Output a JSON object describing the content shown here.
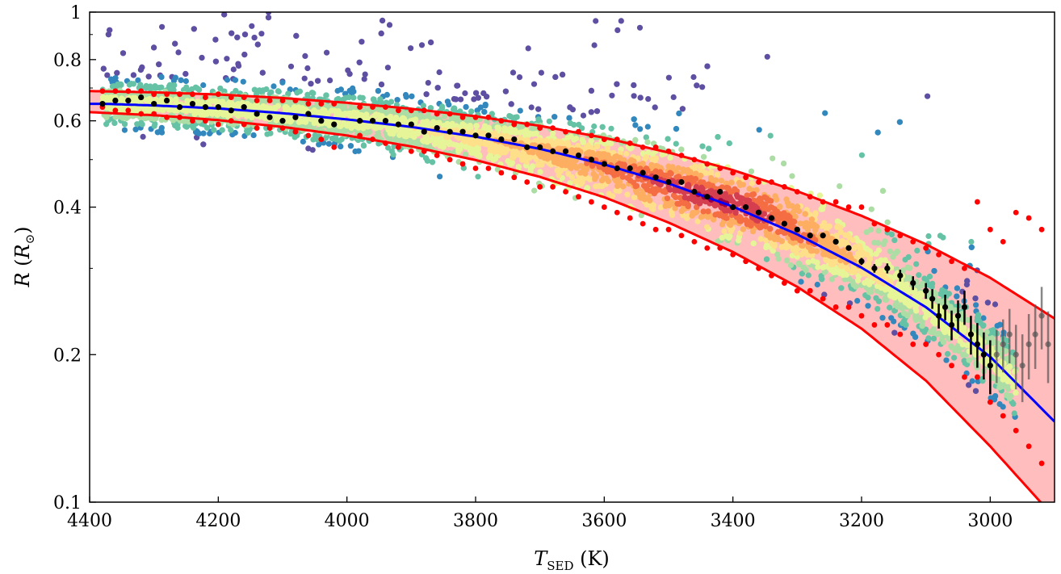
{
  "chart_data": {
    "type": "scatter",
    "title": "",
    "xlabel": "T_SED (K)",
    "xlabel_parts": {
      "symbol": "T",
      "subscript": "SED",
      "unit": " (K)"
    },
    "ylabel": "R (R_⊙)",
    "ylabel_parts": {
      "symbol": "R",
      "unit_open": " (",
      "unit_symbol": "R",
      "unit_sub": "⊙",
      "unit_close": ")"
    },
    "x_reversed": true,
    "xlim": [
      4400,
      2900
    ],
    "ylim": [
      0.1,
      1.0
    ],
    "y_scale": "log",
    "x_ticks": [
      4400,
      4200,
      4000,
      3800,
      3600,
      3400,
      3200,
      3000
    ],
    "x_tick_labels": [
      "4400",
      "4200",
      "4000",
      "3800",
      "3600",
      "3400",
      "3200",
      "3000"
    ],
    "y_ticks": [
      0.1,
      0.2,
      0.4,
      0.6,
      0.8,
      1.0
    ],
    "y_tick_labels": [
      "0.1",
      "0.2",
      "0.4",
      "0.6",
      "0.8",
      "1"
    ],
    "y_minor_ticks": [
      0.3,
      0.5,
      0.7,
      0.9
    ],
    "grid": false,
    "legend": "none",
    "colormap": [
      "#5e4fa2",
      "#3288bd",
      "#66c2a5",
      "#abdda4",
      "#e6f598",
      "#fee08b",
      "#fdae61",
      "#f46d43",
      "#d53e4f",
      "#9e0142"
    ],
    "density_peak": {
      "teff": 3380,
      "radius": 0.42
    },
    "mean_relation": {
      "name": "",
      "color": "#0000ff",
      "x": [
        4380,
        4300,
        4200,
        4100,
        4000,
        3900,
        3800,
        3700,
        3600,
        3500,
        3400,
        3300,
        3200,
        3100,
        3000,
        2900
      ],
      "y": [
        0.65,
        0.645,
        0.636,
        0.622,
        0.604,
        0.583,
        0.557,
        0.526,
        0.489,
        0.447,
        0.401,
        0.352,
        0.301,
        0.25,
        0.198,
        0.146
      ]
    },
    "upper_bound": {
      "color": "#ff0000",
      "x": [
        4400,
        4300,
        4200,
        4100,
        4000,
        3900,
        3800,
        3700,
        3600,
        3500,
        3400,
        3300,
        3200,
        3100,
        3000,
        2900
      ],
      "y": [
        0.69,
        0.686,
        0.679,
        0.668,
        0.653,
        0.635,
        0.613,
        0.586,
        0.554,
        0.517,
        0.476,
        0.431,
        0.384,
        0.336,
        0.287,
        0.237
      ]
    },
    "lower_bound": {
      "color": "#ff0000",
      "x": [
        4400,
        4300,
        4200,
        4100,
        4000,
        3900,
        3800,
        3700,
        3600,
        3500,
        3400,
        3300,
        3200,
        3100,
        3000,
        2900
      ],
      "y": [
        0.625,
        0.616,
        0.602,
        0.583,
        0.56,
        0.532,
        0.499,
        0.461,
        0.419,
        0.372,
        0.324,
        0.275,
        0.226,
        0.177,
        0.13,
        0.093
      ]
    },
    "binned_means": {
      "color": "#000000",
      "x": [
        4380,
        4360,
        4340,
        4320,
        4300,
        4280,
        4260,
        4240,
        4220,
        4200,
        4180,
        4160,
        4140,
        4120,
        4100,
        4080,
        4060,
        4040,
        4020,
        3980,
        3960,
        3940,
        3920,
        3900,
        3880,
        3860,
        3840,
        3820,
        3800,
        3780,
        3760,
        3740,
        3720,
        3700,
        3680,
        3660,
        3640,
        3620,
        3600,
        3580,
        3560,
        3540,
        3520,
        3500,
        3480,
        3460,
        3440,
        3420,
        3400,
        3380,
        3360,
        3340,
        3320,
        3300,
        3280,
        3260,
        3240,
        3220,
        3200,
        3180,
        3160,
        3140,
        3120,
        3100,
        3090,
        3080,
        3070,
        3060,
        3050,
        3040,
        3030,
        3020,
        3010,
        3000,
        2990,
        2980,
        2970,
        2960,
        2950,
        2940,
        2930,
        2920,
        2910
      ],
      "y": [
        0.65,
        0.66,
        0.66,
        0.67,
        0.65,
        0.66,
        0.64,
        0.65,
        0.64,
        0.64,
        0.63,
        0.64,
        0.62,
        0.61,
        0.6,
        0.61,
        0.62,
        0.6,
        0.59,
        0.6,
        0.6,
        0.6,
        0.59,
        0.59,
        0.57,
        0.58,
        0.57,
        0.57,
        0.56,
        0.56,
        0.55,
        0.55,
        0.53,
        0.53,
        0.52,
        0.52,
        0.51,
        0.5,
        0.49,
        0.48,
        0.48,
        0.47,
        0.46,
        0.45,
        0.45,
        0.43,
        0.42,
        0.43,
        0.4,
        0.4,
        0.39,
        0.38,
        0.37,
        0.36,
        0.35,
        0.35,
        0.34,
        0.33,
        0.31,
        0.3,
        0.3,
        0.29,
        0.28,
        0.27,
        0.26,
        0.24,
        0.25,
        0.23,
        0.24,
        0.25,
        0.22,
        0.21,
        0.2,
        0.19,
        0.2,
        0.21,
        0.22,
        0.2,
        0.19,
        0.21,
        0.22,
        0.24,
        0.21
      ],
      "yerr": [
        0.004,
        0.004,
        0.004,
        0.004,
        0.004,
        0.004,
        0.004,
        0.004,
        0.004,
        0.004,
        0.004,
        0.004,
        0.004,
        0.004,
        0.004,
        0.004,
        0.004,
        0.004,
        0.004,
        0.004,
        0.004,
        0.004,
        0.004,
        0.004,
        0.004,
        0.004,
        0.004,
        0.004,
        0.004,
        0.004,
        0.004,
        0.004,
        0.004,
        0.004,
        0.004,
        0.004,
        0.004,
        0.004,
        0.004,
        0.004,
        0.004,
        0.004,
        0.004,
        0.004,
        0.004,
        0.004,
        0.004,
        0.004,
        0.004,
        0.004,
        0.004,
        0.004,
        0.004,
        0.004,
        0.004,
        0.004,
        0.004,
        0.004,
        0.005,
        0.006,
        0.007,
        0.008,
        0.009,
        0.01,
        0.012,
        0.014,
        0.015,
        0.016,
        0.018,
        0.02,
        0.02,
        0.022,
        0.022,
        0.024,
        0.025,
        0.026,
        0.028,
        0.03,
        0.03,
        0.032,
        0.033,
        0.035,
        0.035
      ]
    },
    "sigma_clipped_points": {
      "color": "#ff0000",
      "x": [
        4380,
        4360,
        4340,
        4320,
        4300,
        4280,
        4260,
        4240,
        4220,
        4200,
        4180,
        4160,
        4140,
        4120,
        4100,
        4080,
        4060,
        4040,
        4020,
        3980,
        3960,
        3940,
        3920,
        3900,
        3880,
        3860,
        3840,
        3820,
        3800,
        3780,
        3760,
        3740,
        3720,
        3700,
        3680,
        3660,
        3640,
        3620,
        3600,
        3580,
        3560,
        3540,
        3520,
        3500,
        3480,
        3460,
        3440,
        3420,
        3400,
        3380,
        3360,
        3340,
        3320,
        3300,
        3280,
        3260,
        3240,
        3220,
        3200,
        3180,
        3160,
        3140,
        3120,
        3100,
        3080,
        3060,
        3040,
        3020,
        3000,
        2980,
        2960,
        2940,
        2920
      ],
      "y_upper": [
        0.69,
        0.69,
        0.69,
        0.69,
        0.68,
        0.68,
        0.68,
        0.68,
        0.67,
        0.68,
        0.67,
        0.67,
        0.66,
        0.66,
        0.66,
        0.66,
        0.65,
        0.65,
        0.65,
        0.64,
        0.64,
        0.64,
        0.63,
        0.63,
        0.63,
        0.62,
        0.62,
        0.61,
        0.61,
        0.61,
        0.6,
        0.59,
        0.59,
        0.58,
        0.58,
        0.57,
        0.57,
        0.56,
        0.55,
        0.55,
        0.54,
        0.53,
        0.53,
        0.52,
        0.51,
        0.5,
        0.49,
        0.48,
        0.47,
        0.46,
        0.45,
        0.45,
        0.44,
        0.43,
        0.42,
        0.41,
        0.41,
        0.4,
        0.4,
        0.37,
        0.36,
        0.35,
        0.34,
        0.33,
        0.32,
        0.31,
        0.3,
        0.41,
        0.36,
        0.34,
        0.39,
        0.38,
        0.36
      ],
      "y_lower": [
        0.64,
        0.63,
        0.63,
        0.62,
        0.62,
        0.61,
        0.61,
        0.6,
        0.6,
        0.59,
        0.6,
        0.59,
        0.58,
        0.58,
        0.58,
        0.57,
        0.56,
        0.55,
        0.53,
        0.56,
        0.55,
        0.54,
        0.53,
        0.52,
        0.52,
        0.51,
        0.5,
        0.49,
        0.48,
        0.48,
        0.47,
        0.46,
        0.45,
        0.44,
        0.44,
        0.43,
        0.42,
        0.41,
        0.4,
        0.39,
        0.38,
        0.37,
        0.36,
        0.36,
        0.35,
        0.34,
        0.33,
        0.33,
        0.32,
        0.31,
        0.3,
        0.29,
        0.28,
        0.27,
        0.27,
        0.26,
        0.25,
        0.25,
        0.24,
        0.23,
        0.23,
        0.22,
        0.21,
        0.21,
        0.2,
        0.19,
        0.18,
        0.18,
        0.16,
        0.15,
        0.14,
        0.13,
        0.12
      ]
    }
  }
}
